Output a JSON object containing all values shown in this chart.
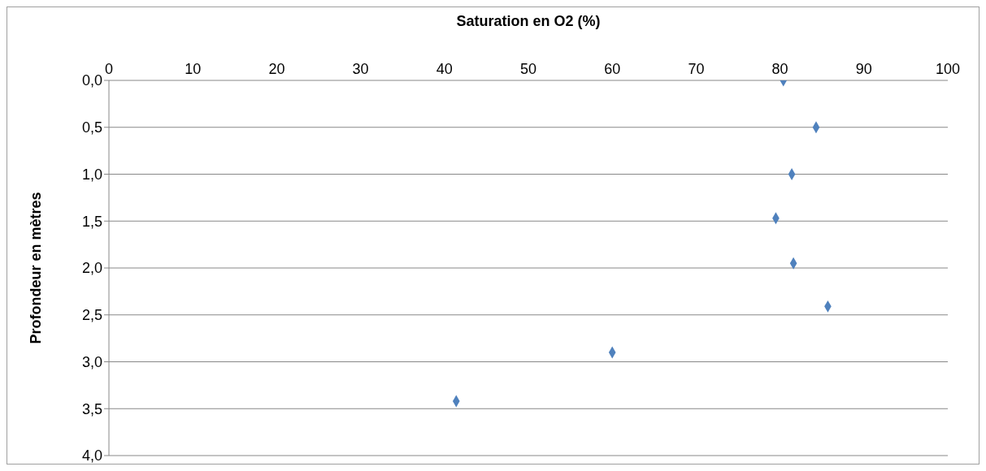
{
  "chart_data": {
    "type": "scatter",
    "xlabel": "Saturation en O2 (%)",
    "ylabel": "Profondeur en mètres",
    "x": [
      80.4,
      84.3,
      81.4,
      79.5,
      81.6,
      85.7,
      60.0,
      41.4
    ],
    "values": [
      0.0,
      0.5,
      1.0,
      1.47,
      1.95,
      2.41,
      2.9,
      3.42
    ],
    "color": "#4f81bd",
    "marker": "diamond",
    "xlim": [
      0,
      100
    ],
    "xticks": [
      0,
      10,
      20,
      30,
      40,
      50,
      60,
      70,
      80,
      90,
      100
    ],
    "ylim": [
      4,
      0
    ],
    "yticks": [
      {
        "value": 0,
        "label": "0,0"
      },
      {
        "value": 0.5,
        "label": "0,5"
      },
      {
        "value": 1,
        "label": "1,0"
      },
      {
        "value": 1.5,
        "label": "1,5"
      },
      {
        "value": 2,
        "label": "2,0"
      },
      {
        "value": 2.5,
        "label": "2,5"
      },
      {
        "value": 3,
        "label": "3,0"
      },
      {
        "value": 3.5,
        "label": "3,5"
      },
      {
        "value": 4,
        "label": "4,0"
      }
    ],
    "grid": "y",
    "legend": false
  }
}
